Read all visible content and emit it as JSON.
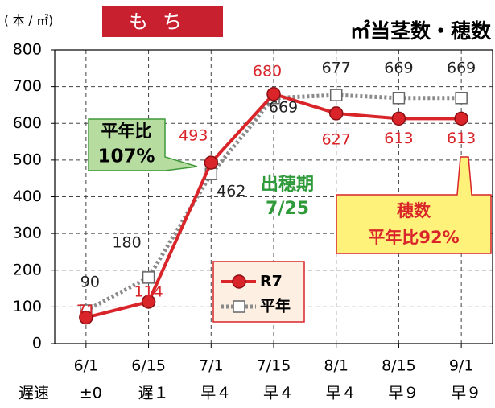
{
  "chart_data": {
    "type": "line",
    "title": "㎡当茎数・穂数",
    "badge": "もち",
    "unit_label": "( 本 / ㎡)",
    "categories": [
      "6/1",
      "6/15",
      "7/1",
      "7/15",
      "8/1",
      "8/15",
      "9/1"
    ],
    "delay_label": "遅速",
    "delays": [
      "±0",
      "遅１",
      "早４",
      "早４",
      "早４",
      "早９",
      "早９"
    ],
    "series": [
      {
        "name": "R7",
        "color": "#d9252a",
        "values": [
          71,
          114,
          493,
          680,
          627,
          613,
          613
        ]
      },
      {
        "name": "平年",
        "color": "#8a8a8a",
        "values": [
          90,
          180,
          462,
          669,
          677,
          669,
          669
        ]
      }
    ],
    "ylim": [
      0,
      800
    ],
    "yticks": [
      0,
      100,
      200,
      300,
      400,
      500,
      600,
      700,
      800
    ],
    "grid": true,
    "annotations": [
      {
        "lines": [
          "平年比",
          "107%"
        ],
        "color": "#1a1a1a",
        "fill": "#b7dca0"
      },
      {
        "lines": [
          "出穂期",
          "7/25"
        ],
        "color": "#2e9a3a"
      },
      {
        "lines": [
          "穂数",
          "平年比92%"
        ],
        "color": "#d9252a",
        "fill": "#fff27a"
      }
    ]
  }
}
